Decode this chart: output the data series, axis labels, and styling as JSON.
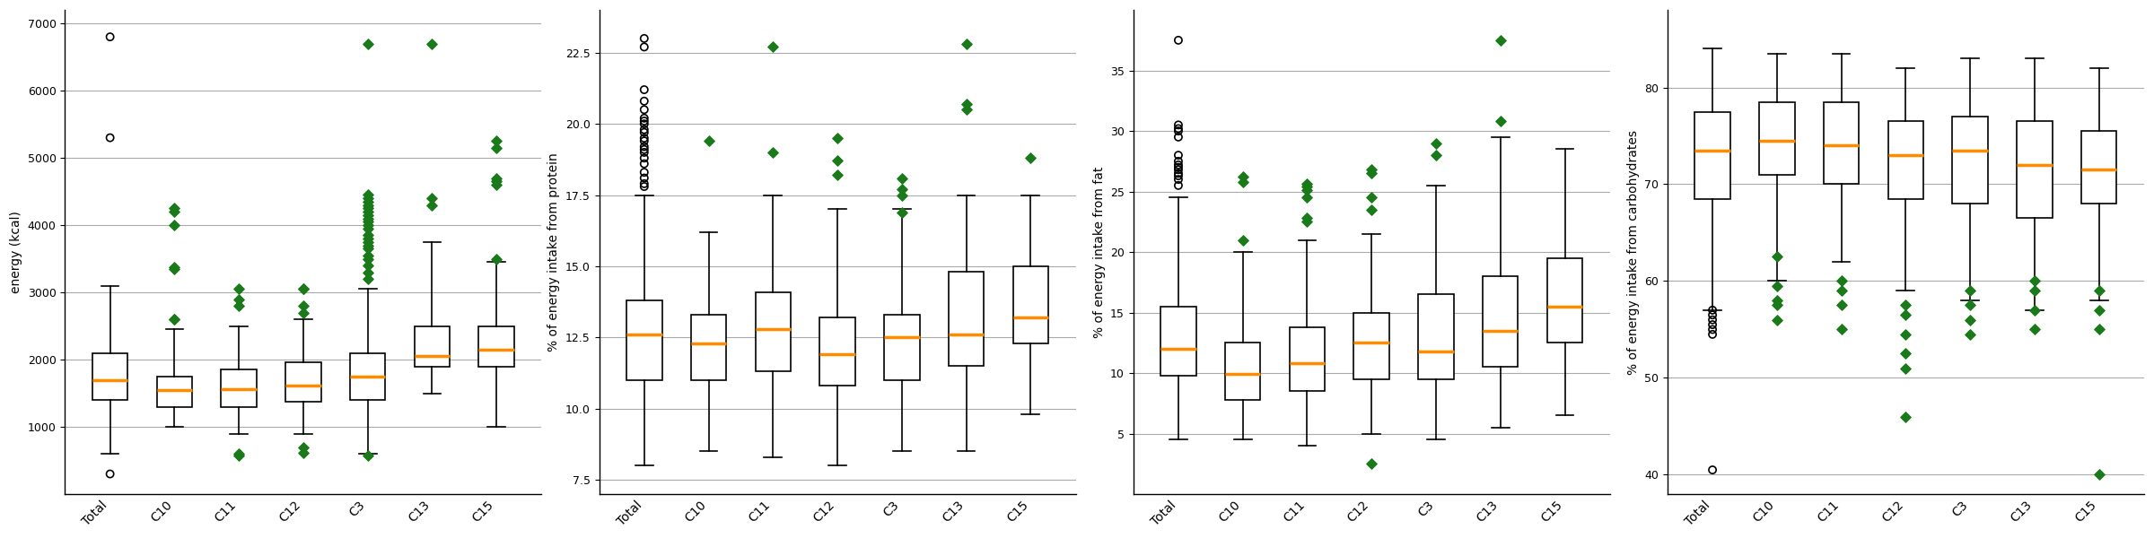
{
  "categories": [
    "Total",
    "C10",
    "C11",
    "C12",
    "C3",
    "C13",
    "C15"
  ],
  "plots": [
    {
      "ylabel": "energy (kcal)",
      "ylim": [
        0,
        7200
      ],
      "yticks": [
        1000,
        2000,
        3000,
        4000,
        5000,
        6000,
        7000
      ],
      "boxes": [
        {
          "med": 1700,
          "q1": 1400,
          "q3": 2100,
          "whislo": 600,
          "whishi": 3100,
          "fliers_circle": [
            300,
            5300,
            6800
          ],
          "fliers_diamond": []
        },
        {
          "med": 1550,
          "q1": 1300,
          "q3": 1750,
          "whislo": 1000,
          "whishi": 2450,
          "fliers_circle": [],
          "fliers_diamond": [
            2600,
            2600,
            3350,
            3380,
            4000,
            4200,
            4250
          ]
        },
        {
          "med": 1560,
          "q1": 1300,
          "q3": 1850,
          "whislo": 900,
          "whishi": 2500,
          "fliers_circle": [],
          "fliers_diamond": [
            580,
            600,
            2800,
            2900,
            3050
          ]
        },
        {
          "med": 1620,
          "q1": 1380,
          "q3": 1960,
          "whislo": 900,
          "whishi": 2600,
          "fliers_circle": [],
          "fliers_diamond": [
            620,
            700,
            2700,
            2800,
            3050,
            3050
          ]
        },
        {
          "med": 1750,
          "q1": 1400,
          "q3": 2100,
          "whislo": 600,
          "whishi": 3050,
          "fliers_circle": [],
          "fliers_diamond": [
            580,
            3200,
            3300,
            3400,
            3500,
            3550,
            3650,
            3700,
            3750,
            3800,
            3850,
            3950,
            4000,
            4050,
            4100,
            4150,
            4200,
            4250,
            4300,
            4350,
            4400,
            4450,
            6700
          ]
        },
        {
          "med": 2050,
          "q1": 1900,
          "q3": 2500,
          "whislo": 1500,
          "whishi": 3750,
          "fliers_circle": [],
          "fliers_diamond": [
            4300,
            4400,
            6700
          ]
        },
        {
          "med": 2150,
          "q1": 1900,
          "q3": 2500,
          "whislo": 1000,
          "whishi": 3450,
          "fliers_circle": [],
          "fliers_diamond": [
            3500,
            4600,
            4650,
            4700,
            5150,
            5250
          ]
        }
      ]
    },
    {
      "ylabel": "% of energy intake from protein",
      "ylim": [
        7.0,
        24.0
      ],
      "yticks": [
        7.5,
        10.0,
        12.5,
        15.0,
        17.5,
        20.0,
        22.5
      ],
      "boxes": [
        {
          "med": 12.6,
          "q1": 11.0,
          "q3": 13.8,
          "whislo": 8.0,
          "whishi": 17.5,
          "fliers_circle": [
            17.8,
            17.9,
            18.1,
            18.3,
            18.6,
            18.8,
            19.0,
            19.1,
            19.2,
            19.4,
            19.5,
            19.7,
            19.8,
            20.0,
            20.1,
            20.2,
            20.5,
            20.8,
            21.2,
            22.7,
            23.0
          ],
          "fliers_diamond": []
        },
        {
          "med": 12.3,
          "q1": 11.0,
          "q3": 13.3,
          "whislo": 8.5,
          "whishi": 16.2,
          "fliers_circle": [],
          "fliers_diamond": [
            19.4
          ]
        },
        {
          "med": 12.8,
          "q1": 11.3,
          "q3": 14.1,
          "whislo": 8.3,
          "whishi": 17.5,
          "fliers_circle": [],
          "fliers_diamond": [
            19.0,
            22.7
          ]
        },
        {
          "med": 11.9,
          "q1": 10.8,
          "q3": 13.2,
          "whislo": 8.0,
          "whishi": 17.0,
          "fliers_circle": [],
          "fliers_diamond": [
            18.2,
            18.7,
            19.5
          ]
        },
        {
          "med": 12.5,
          "q1": 11.0,
          "q3": 13.3,
          "whislo": 8.5,
          "whishi": 17.0,
          "fliers_circle": [],
          "fliers_diamond": [
            16.9,
            17.5,
            17.7,
            18.1
          ]
        },
        {
          "med": 12.6,
          "q1": 11.5,
          "q3": 14.8,
          "whislo": 8.5,
          "whishi": 17.5,
          "fliers_circle": [],
          "fliers_diamond": [
            20.5,
            20.7,
            22.8
          ]
        },
        {
          "med": 13.2,
          "q1": 12.3,
          "q3": 15.0,
          "whislo": 9.8,
          "whishi": 17.5,
          "fliers_circle": [],
          "fliers_diamond": [
            18.8
          ]
        }
      ]
    },
    {
      "ylabel": "% of energy intake from fat",
      "ylim": [
        0,
        40
      ],
      "yticks": [
        5,
        10,
        15,
        20,
        25,
        30,
        35
      ],
      "boxes": [
        {
          "med": 12.0,
          "q1": 9.8,
          "q3": 15.5,
          "whislo": 4.5,
          "whishi": 24.5,
          "fliers_circle": [
            25.5,
            26.0,
            26.3,
            26.5,
            26.8,
            27.0,
            27.2,
            27.5,
            28.0,
            29.5,
            30.0,
            30.2,
            30.5,
            37.5
          ],
          "fliers_diamond": []
        },
        {
          "med": 9.9,
          "q1": 7.8,
          "q3": 12.5,
          "whislo": 4.5,
          "whishi": 20.0,
          "fliers_circle": [],
          "fliers_diamond": [
            21.0,
            25.8,
            26.2
          ]
        },
        {
          "med": 10.8,
          "q1": 8.5,
          "q3": 13.8,
          "whislo": 4.0,
          "whishi": 21.0,
          "fliers_circle": [],
          "fliers_diamond": [
            22.5,
            22.8,
            24.5,
            25.1,
            25.4,
            25.6
          ]
        },
        {
          "med": 12.5,
          "q1": 9.5,
          "q3": 15.0,
          "whislo": 5.0,
          "whishi": 21.5,
          "fliers_circle": [],
          "fliers_diamond": [
            2.5,
            23.5,
            24.5,
            26.5,
            26.8
          ]
        },
        {
          "med": 11.8,
          "q1": 9.5,
          "q3": 16.5,
          "whislo": 4.5,
          "whishi": 25.5,
          "fliers_circle": [],
          "fliers_diamond": [
            28.0,
            29.0
          ]
        },
        {
          "med": 13.5,
          "q1": 10.5,
          "q3": 18.0,
          "whislo": 5.5,
          "whishi": 29.5,
          "fliers_circle": [],
          "fliers_diamond": [
            30.8,
            37.5
          ]
        },
        {
          "med": 15.5,
          "q1": 12.5,
          "q3": 19.5,
          "whislo": 6.5,
          "whishi": 28.5,
          "fliers_circle": [],
          "fliers_diamond": []
        }
      ]
    },
    {
      "ylabel": "% of energy intake from carbohydrates",
      "ylim": [
        38,
        88
      ],
      "yticks": [
        40,
        50,
        60,
        70,
        80
      ],
      "boxes": [
        {
          "med": 73.5,
          "q1": 68.5,
          "q3": 77.5,
          "whislo": 57.0,
          "whishi": 84.0,
          "fliers_circle": [
            40.5,
            54.5,
            55.0,
            55.5,
            56.0,
            56.5,
            57.0
          ],
          "fliers_diamond": []
        },
        {
          "med": 74.5,
          "q1": 71.0,
          "q3": 78.5,
          "whislo": 60.0,
          "whishi": 83.5,
          "fliers_circle": [],
          "fliers_diamond": [
            56.0,
            57.5,
            58.0,
            59.5,
            62.5
          ]
        },
        {
          "med": 74.0,
          "q1": 70.0,
          "q3": 78.5,
          "whislo": 62.0,
          "whishi": 83.5,
          "fliers_circle": [],
          "fliers_diamond": [
            55.0,
            57.5,
            59.0,
            60.0
          ]
        },
        {
          "med": 73.0,
          "q1": 68.5,
          "q3": 76.5,
          "whislo": 59.0,
          "whishi": 82.0,
          "fliers_circle": [],
          "fliers_diamond": [
            46.0,
            51.0,
            52.5,
            54.5,
            56.5,
            57.5
          ]
        },
        {
          "med": 73.5,
          "q1": 68.0,
          "q3": 77.0,
          "whislo": 58.0,
          "whishi": 83.0,
          "fliers_circle": [],
          "fliers_diamond": [
            54.5,
            56.0,
            57.5,
            59.0
          ]
        },
        {
          "med": 72.0,
          "q1": 66.5,
          "q3": 76.5,
          "whislo": 57.0,
          "whishi": 83.0,
          "fliers_circle": [],
          "fliers_diamond": [
            55.0,
            57.0,
            59.0,
            60.0
          ]
        },
        {
          "med": 71.5,
          "q1": 68.0,
          "q3": 75.5,
          "whislo": 58.0,
          "whishi": 82.0,
          "fliers_circle": [],
          "fliers_diamond": [
            40.0,
            55.0,
            57.0,
            59.0
          ]
        }
      ]
    }
  ],
  "box_facecolor": "#ffffff",
  "median_color": "#ff8c00",
  "whisker_color": "#000000",
  "flier_circle_facecolor": "none",
  "flier_circle_edgecolor": "#000000",
  "flier_diamond_color": "#1a7a1a",
  "background_color": "#ffffff",
  "grid_color": "#aaaaaa"
}
